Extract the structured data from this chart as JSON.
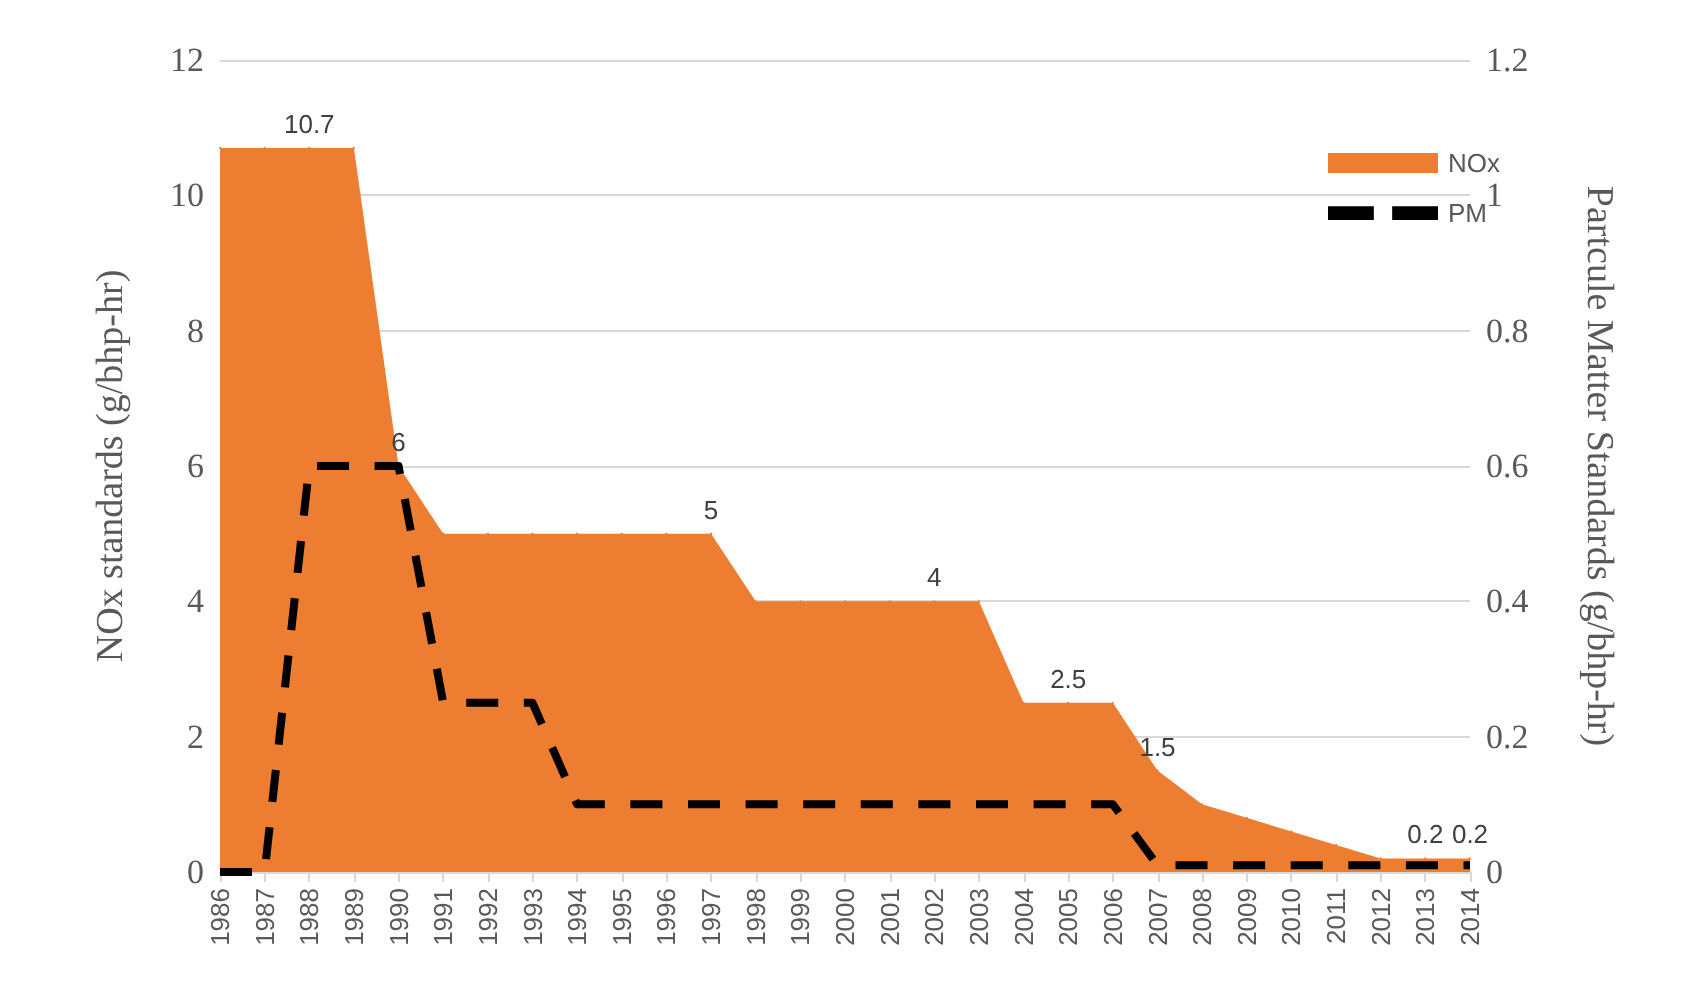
{
  "chart_data": {
    "type": "area",
    "ylabel": "NOx standards (g/bhp-hr)",
    "y2label": "Partcule Matter Standards (g/bhp-hr)",
    "categories": [
      "1986",
      "1987",
      "1988",
      "1989",
      "1990",
      "1991",
      "1992",
      "1993",
      "1994",
      "1995",
      "1996",
      "1997",
      "1998",
      "1999",
      "2000",
      "2001",
      "2002",
      "2003",
      "2004",
      "2005",
      "2006",
      "2007",
      "2008",
      "2009",
      "2010",
      "2011",
      "2012",
      "2013",
      "2014"
    ],
    "series": [
      {
        "name": "NOx",
        "type": "area",
        "color": "#ed7d31",
        "values": [
          10.7,
          10.7,
          10.7,
          10.7,
          6,
          5,
          5,
          5,
          5,
          5,
          5,
          5,
          4,
          4,
          4,
          4,
          4,
          4,
          2.5,
          2.5,
          2.5,
          1.5,
          1.0,
          0.8,
          0.6,
          0.4,
          0.2,
          0.2,
          0.2
        ],
        "value_labels": [
          null,
          null,
          "10.7",
          null,
          "6",
          null,
          null,
          null,
          null,
          null,
          null,
          "5",
          null,
          null,
          null,
          null,
          "4",
          null,
          null,
          "2.5",
          null,
          "1.5",
          null,
          null,
          null,
          null,
          null,
          "0.2",
          "0.2"
        ]
      },
      {
        "name": "PM",
        "type": "line",
        "axis": "y2",
        "color": "#000000",
        "line_style": "dashed",
        "marker": "none",
        "values": [
          0,
          0,
          0.6,
          0.6,
          0.6,
          0.25,
          0.25,
          0.25,
          0.1,
          0.1,
          0.1,
          0.1,
          0.1,
          0.1,
          0.1,
          0.1,
          0.1,
          0.1,
          0.1,
          0.1,
          0.1,
          0.01,
          0.01,
          0.01,
          0.01,
          0.01,
          0.01,
          0.01,
          0.01
        ]
      }
    ],
    "ylim": [
      0,
      12
    ],
    "yticks": [
      0,
      2,
      4,
      6,
      8,
      10,
      12
    ],
    "y2lim": [
      0,
      1.2
    ],
    "y2ticks": [
      0,
      0.2,
      0.4,
      0.6,
      0.8,
      1,
      1.2
    ],
    "grid": "y",
    "legend": "top right"
  }
}
